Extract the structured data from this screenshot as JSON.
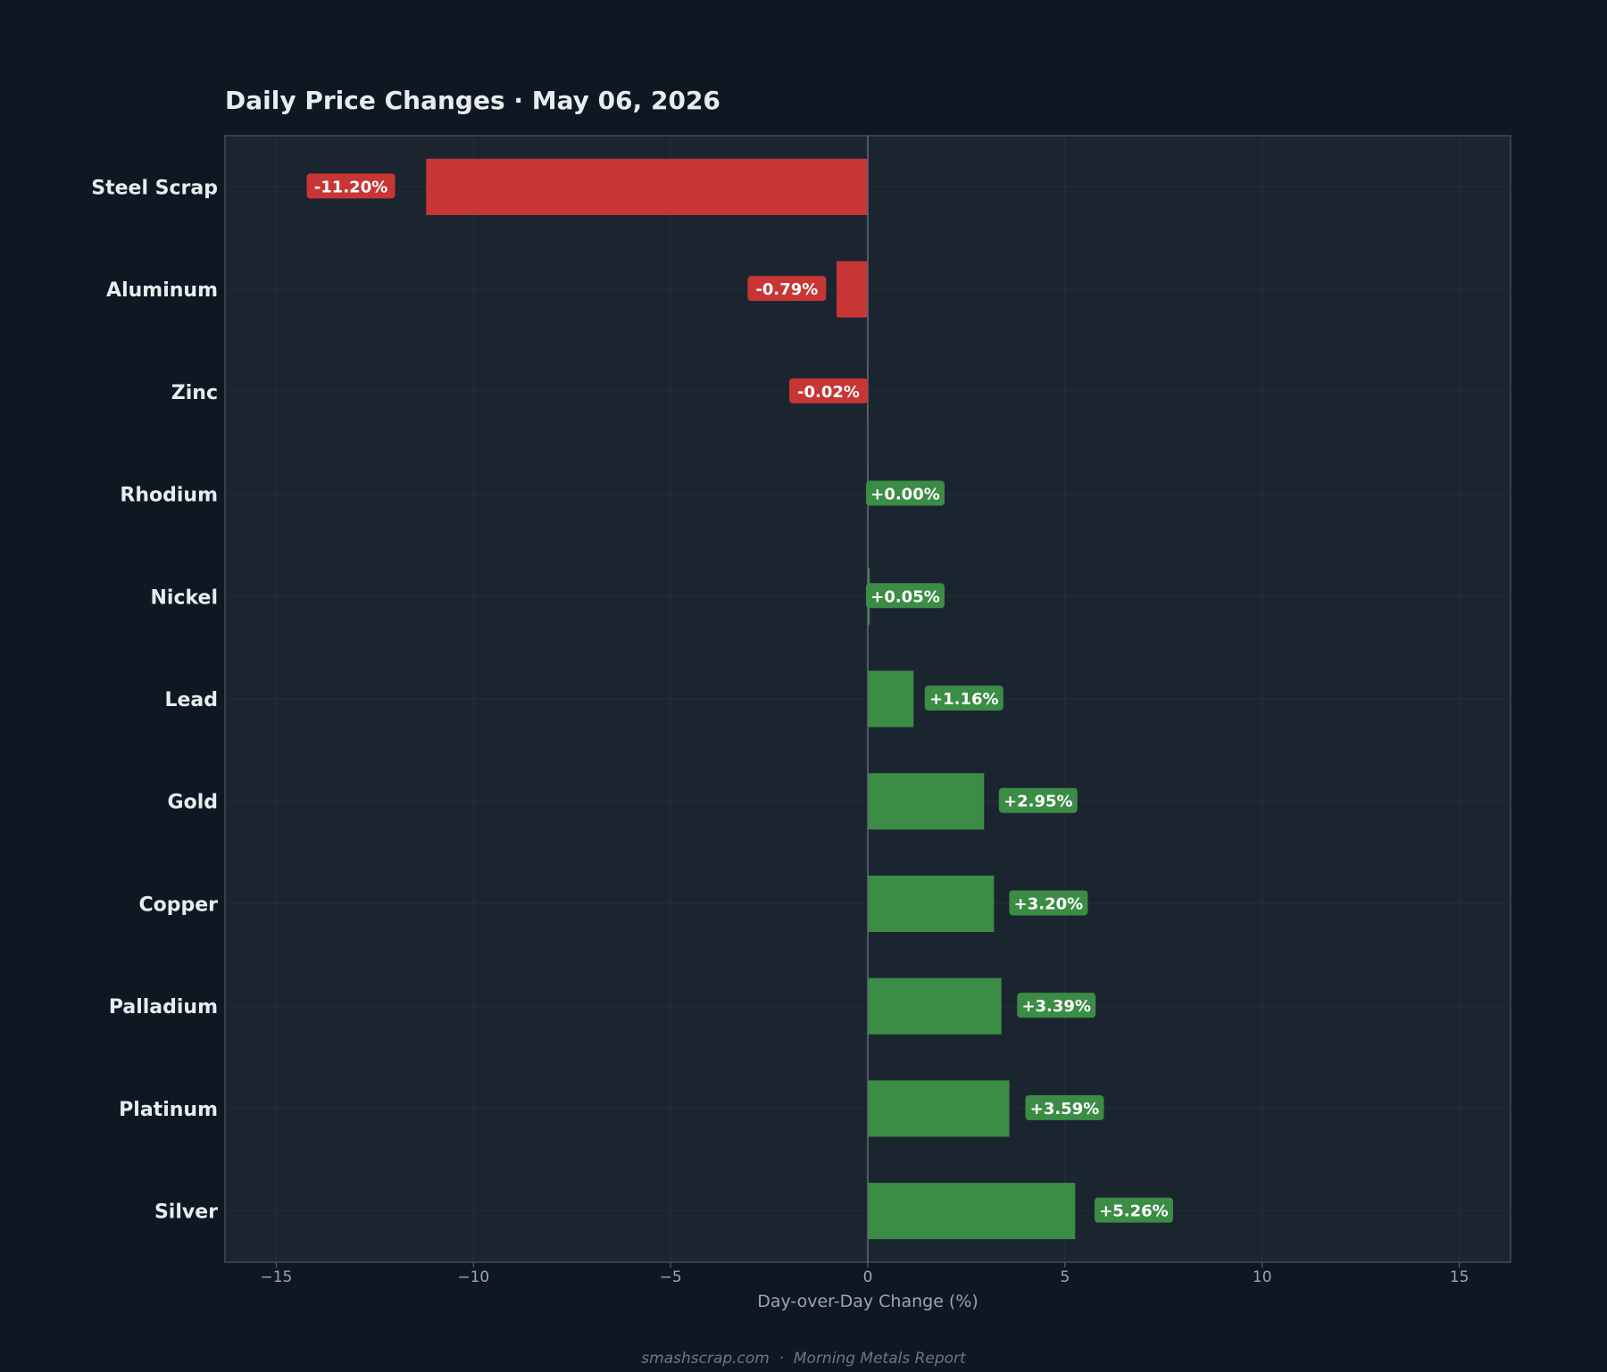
{
  "chart_data": {
    "type": "bar",
    "orientation": "horizontal",
    "title": "Daily Price Changes  ·  May 06, 2026",
    "xlabel": "Day-over-Day Change (%)",
    "ylabel": "",
    "xlim": [
      -16.3,
      16.3
    ],
    "xticks": [
      -15,
      -10,
      -5,
      0,
      5,
      10,
      15
    ],
    "xtick_labels": [
      "−15",
      "−10",
      "−5",
      "0",
      "5",
      "10",
      "15"
    ],
    "grid": true,
    "categories": [
      "Steel Scrap",
      "Aluminum",
      "Zinc",
      "Rhodium",
      "Nickel",
      "Lead",
      "Gold",
      "Copper",
      "Palladium",
      "Platinum",
      "Silver"
    ],
    "values": [
      -11.2,
      -0.79,
      -0.02,
      0.0,
      0.05,
      1.16,
      2.95,
      3.2,
      3.39,
      3.59,
      5.26
    ],
    "data_labels": [
      "-11.20%",
      "-0.79%",
      "-0.02%",
      "+0.00%",
      "+0.05%",
      "+1.16%",
      "+2.95%",
      "+3.20%",
      "+3.39%",
      "+3.59%",
      "+5.26%"
    ],
    "colors": {
      "negative": "#c73535",
      "positive": "#3b8c44"
    }
  },
  "footer": "smashscrap.com  ·  Morning Metals Report"
}
